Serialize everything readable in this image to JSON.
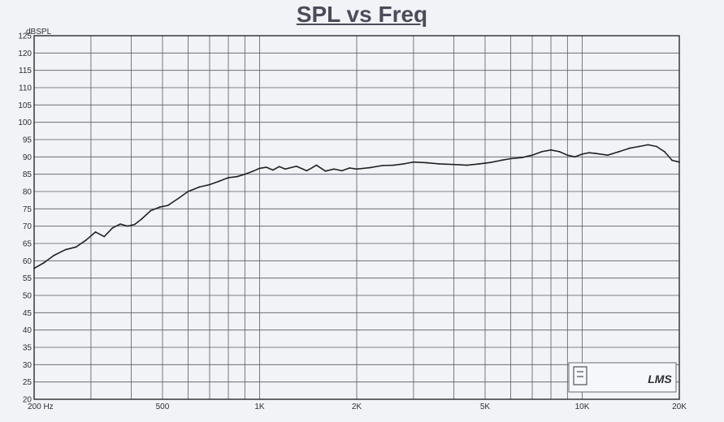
{
  "chart_data": {
    "type": "line",
    "title": "SPL vs Freq",
    "ylabel": "dBSPL",
    "xscale": "log",
    "xlim": [
      200,
      20000
    ],
    "ylim": [
      20,
      125
    ],
    "grid": true,
    "legend": "none",
    "x_tick_labels": [
      {
        "value": 200,
        "label": "200 Hz"
      },
      {
        "value": 500,
        "label": "500"
      },
      {
        "value": 1000,
        "label": "1K"
      },
      {
        "value": 2000,
        "label": "2K"
      },
      {
        "value": 5000,
        "label": "5K"
      },
      {
        "value": 10000,
        "label": "10K"
      },
      {
        "value": 20000,
        "label": "20K"
      }
    ],
    "y_ticks": [
      20,
      25,
      30,
      35,
      40,
      45,
      50,
      55,
      60,
      65,
      70,
      75,
      80,
      85,
      90,
      95,
      100,
      105,
      110,
      115,
      120,
      125
    ],
    "series": [
      {
        "color": "#222222",
        "x": [
          200,
          215,
          230,
          250,
          270,
          290,
          310,
          330,
          350,
          370,
          390,
          410,
          430,
          460,
          490,
          520,
          560,
          600,
          650,
          700,
          750,
          800,
          850,
          900,
          950,
          1000,
          1050,
          1100,
          1150,
          1200,
          1300,
          1400,
          1500,
          1600,
          1700,
          1800,
          1900,
          2000,
          2200,
          2400,
          2600,
          2800,
          3000,
          3300,
          3600,
          4000,
          4400,
          4800,
          5200,
          5600,
          6000,
          6500,
          7000,
          7500,
          8000,
          8500,
          9000,
          9500,
          10000,
          10500,
          11000,
          12000,
          13000,
          14000,
          15000,
          16000,
          17000,
          18000,
          19000,
          20000
        ],
        "values": [
          57.8,
          59.5,
          61.5,
          63.2,
          64.0,
          66.0,
          68.3,
          67.0,
          69.5,
          70.6,
          70.0,
          70.5,
          72.0,
          74.5,
          75.5,
          76.0,
          78.0,
          80.0,
          81.3,
          82.0,
          83.0,
          84.0,
          84.3,
          85.0,
          85.8,
          86.7,
          87.0,
          86.2,
          87.2,
          86.5,
          87.3,
          86.0,
          87.6,
          85.9,
          86.5,
          86.0,
          86.8,
          86.5,
          86.9,
          87.5,
          87.6,
          88.0,
          88.5,
          88.3,
          88.0,
          87.8,
          87.6,
          88.0,
          88.4,
          89.0,
          89.5,
          89.8,
          90.5,
          91.5,
          92.0,
          91.5,
          90.5,
          90.0,
          90.8,
          91.2,
          91.0,
          90.5,
          91.5,
          92.5,
          93.0,
          93.5,
          93.0,
          91.5,
          89.0,
          88.5
        ]
      }
    ],
    "watermark_text": "LMS"
  }
}
